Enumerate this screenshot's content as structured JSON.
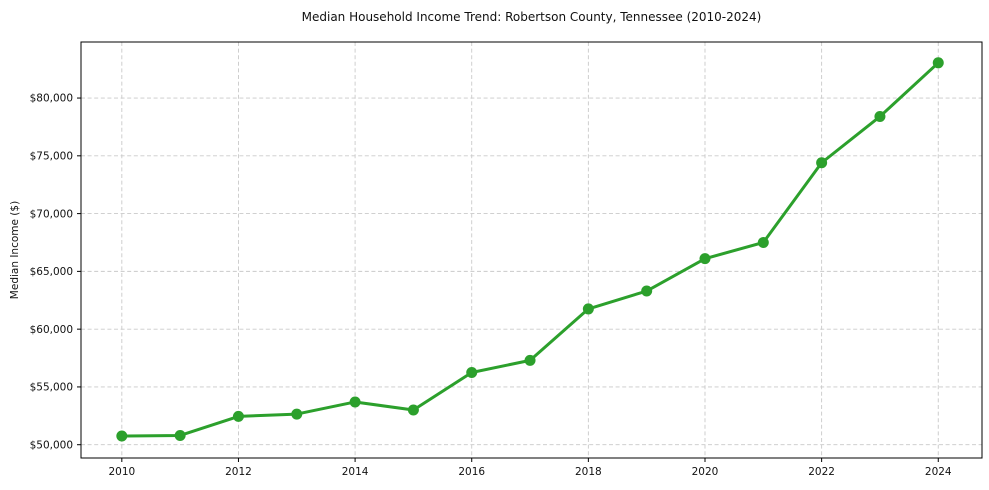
{
  "chart_data": {
    "type": "line",
    "title": "Median Household Income Trend: Robertson County, Tennessee (2010-2024)",
    "xlabel": "",
    "ylabel": "Median Income ($)",
    "x": [
      2010,
      2011,
      2012,
      2013,
      2014,
      2015,
      2016,
      2017,
      2018,
      2019,
      2020,
      2021,
      2022,
      2023,
      2024
    ],
    "series": [
      {
        "name": "Median Household Income",
        "values": [
          50750,
          50800,
          52450,
          52650,
          53700,
          53000,
          56250,
          57300,
          61750,
          63300,
          66100,
          67500,
          74400,
          78400,
          83050
        ],
        "color": "#2ca02c"
      }
    ],
    "x_ticks": [
      2010,
      2012,
      2014,
      2016,
      2018,
      2020,
      2022,
      2024
    ],
    "x_tick_labels": [
      "2010",
      "2012",
      "2014",
      "2016",
      "2018",
      "2020",
      "2022",
      "2024"
    ],
    "y_ticks": [
      50000,
      55000,
      60000,
      65000,
      70000,
      75000,
      80000
    ],
    "y_tick_labels": [
      "$50,000",
      "$55,000",
      "$60,000",
      "$65,000",
      "$70,000",
      "$75,000",
      "$80,000"
    ],
    "xlim": [
      2009.3,
      2024.75
    ],
    "ylim": [
      48850,
      84850
    ],
    "grid": true,
    "legend": false,
    "marker": "circle",
    "marker_radius": 5.5,
    "line_width": 3,
    "background": "#ffffff",
    "grid_color": "#c9c9c9",
    "frame_color": "#000000",
    "text_color": "#111111"
  }
}
